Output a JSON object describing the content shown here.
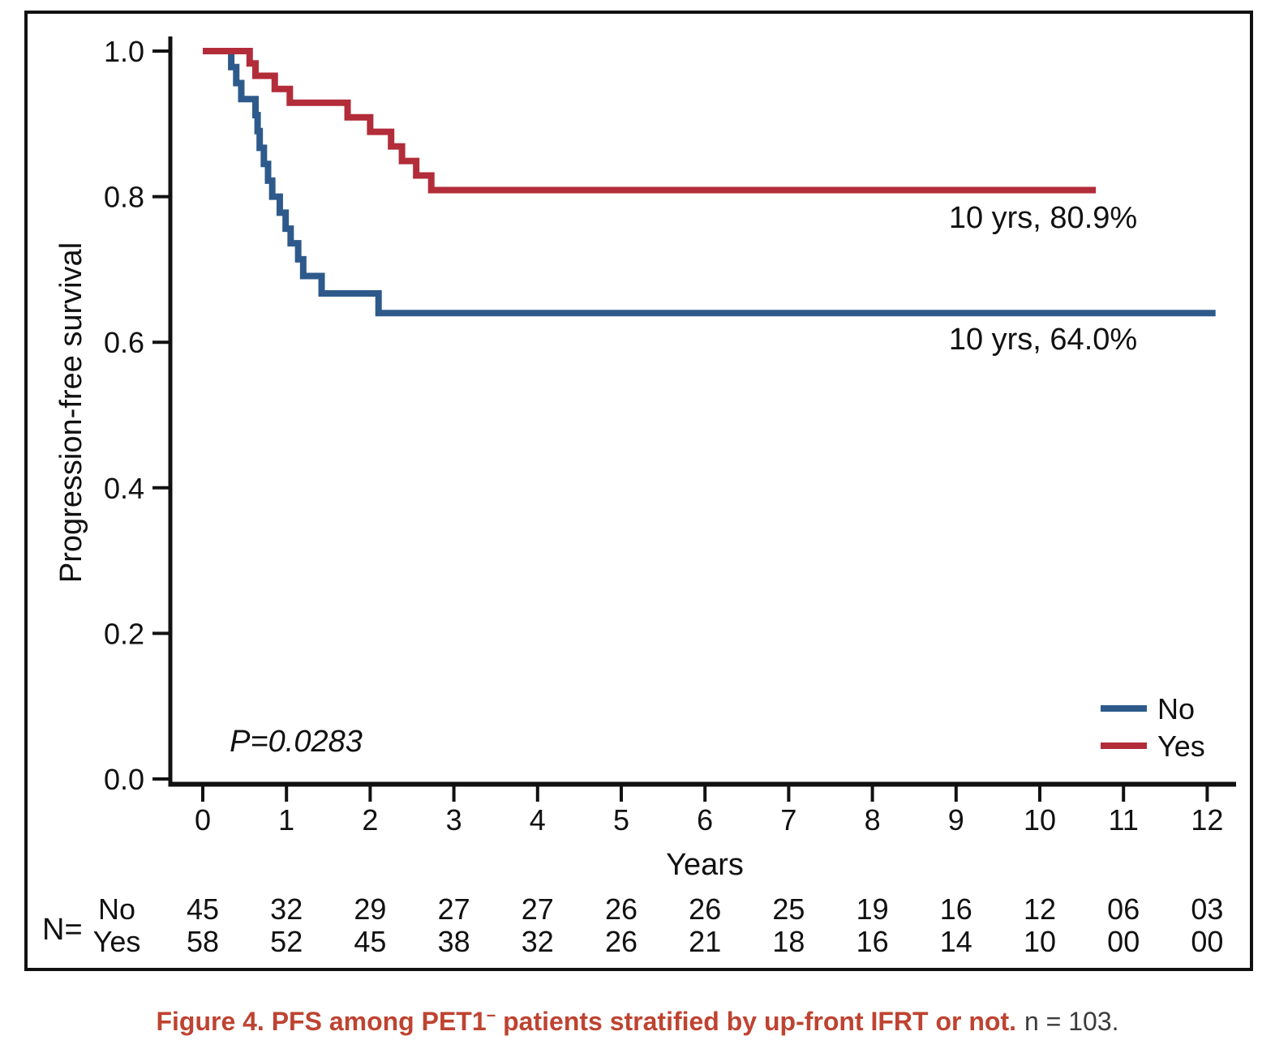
{
  "caption": {
    "bold_prefix": "Figure 4. PFS among PET1",
    "superscript": "−",
    "bold_suffix": " patients stratified by up-front IFRT or not.",
    "normal": "n = 103.",
    "accent_color": "#BE4331",
    "normal_color": "#3B3B3B"
  },
  "chart_data": {
    "type": "line",
    "subtype": "kaplan-meier-step",
    "title": "",
    "xlabel": "Years",
    "ylabel": "Progression-free survival",
    "xlim": [
      0,
      12.3
    ],
    "ylim": [
      0.0,
      1.0
    ],
    "grid": false,
    "legend_position": "lower right",
    "x_ticks": [
      "0",
      "1",
      "2",
      "3",
      "4",
      "5",
      "6",
      "7",
      "8",
      "9",
      "10",
      "11",
      "12"
    ],
    "y_ticks": [
      "0.0",
      "0.2",
      "0.4",
      "0.6",
      "0.8",
      "1.0"
    ],
    "pvalue": "P=0.0283",
    "series": [
      {
        "name": "No",
        "color": "#2E5A8B",
        "annotation": "10 yrs, 64.0%",
        "final_value": 0.64,
        "line_end_x": 12.1,
        "points": [
          [
            0,
            1.0
          ],
          [
            0.34,
            0.978
          ],
          [
            0.4,
            0.956
          ],
          [
            0.46,
            0.934
          ],
          [
            0.63,
            0.912
          ],
          [
            0.655,
            0.89
          ],
          [
            0.68,
            0.867
          ],
          [
            0.73,
            0.845
          ],
          [
            0.78,
            0.822
          ],
          [
            0.83,
            0.8
          ],
          [
            0.92,
            0.778
          ],
          [
            0.99,
            0.756
          ],
          [
            1.05,
            0.736
          ],
          [
            1.14,
            0.714
          ],
          [
            1.2,
            0.691
          ],
          [
            1.42,
            0.667
          ],
          [
            2.1,
            0.64
          ]
        ]
      },
      {
        "name": "Yes",
        "color": "#B22C3A",
        "annotation": "10 yrs, 80.9%",
        "final_value": 0.809,
        "line_end_x": 10.67,
        "points": [
          [
            0,
            1.0
          ],
          [
            0.56,
            0.983
          ],
          [
            0.63,
            0.966
          ],
          [
            0.86,
            0.948
          ],
          [
            1.04,
            0.929
          ],
          [
            1.73,
            0.909
          ],
          [
            2.0,
            0.889
          ],
          [
            2.25,
            0.869
          ],
          [
            2.38,
            0.849
          ],
          [
            2.55,
            0.829
          ],
          [
            2.73,
            0.809
          ]
        ]
      }
    ]
  },
  "risk_table": {
    "prefix": "N=",
    "rows": [
      {
        "label": "No",
        "color": "#2E5A8B",
        "counts": [
          "45",
          "32",
          "29",
          "27",
          "27",
          "26",
          "26",
          "25",
          "19",
          "16",
          "12",
          "06",
          "03"
        ]
      },
      {
        "label": "Yes",
        "color": "#B22C3A",
        "counts": [
          "58",
          "52",
          "45",
          "38",
          "32",
          "26",
          "21",
          "18",
          "16",
          "14",
          "10",
          "00",
          "00"
        ]
      }
    ]
  }
}
